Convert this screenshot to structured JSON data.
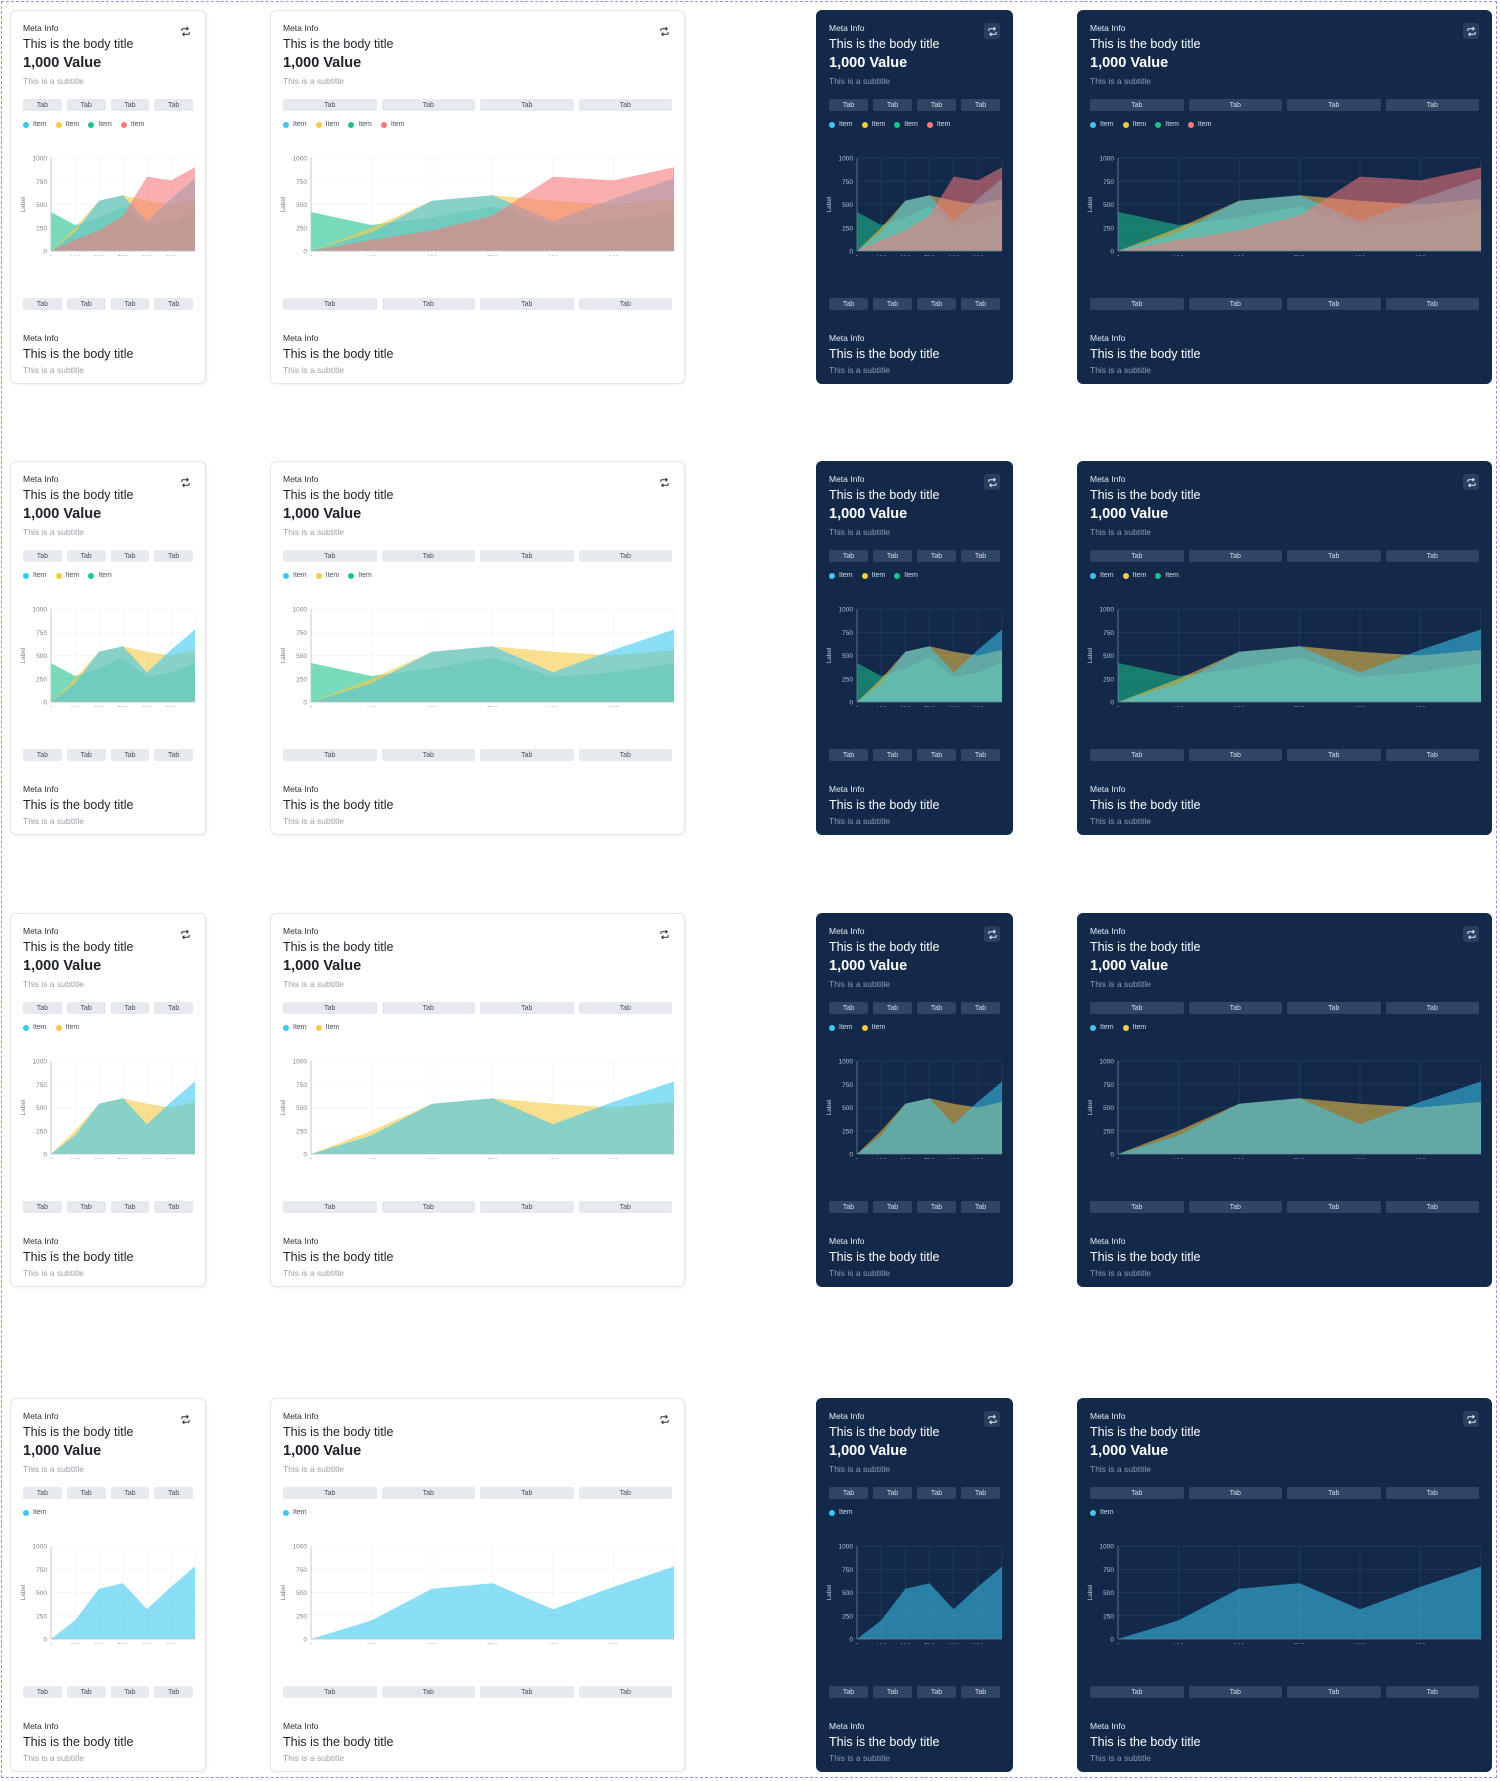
{
  "card": {
    "meta": "Meta Info",
    "title": "This is the body title",
    "value": "1,000 Value",
    "subtitle": "This is a subtitle",
    "tabs": [
      "Tab",
      "Tab",
      "Tab",
      "Tab"
    ],
    "footer_meta": "Meta Info",
    "footer_title": "This is the body title",
    "footer_subtitle": "This is a subtitle",
    "refresh_icon": "refresh-icon"
  },
  "colors": {
    "light_bg": "#ffffff",
    "dark_bg": "#13294a",
    "blue": "#3cc8ef",
    "yellow": "#f7c948",
    "green": "#1ec38d",
    "red": "#f57a7a"
  },
  "rows": [
    {
      "series_count": 4
    },
    {
      "series_count": 3
    },
    {
      "series_count": 2
    },
    {
      "series_count": 1
    }
  ],
  "chart_data": {
    "type": "area",
    "x": [
      0,
      100,
      600,
      700,
      800,
      900,
      1000
    ],
    "x_ticks": [
      "0",
      "100",
      "600",
      "700",
      "800",
      "900"
    ],
    "y_ticks": [
      "1000",
      "750",
      "500",
      "250",
      "0",
      "0"
    ],
    "ylim": [
      0,
      1000
    ],
    "xlabel": "Label",
    "ylabel": "Label",
    "series": [
      {
        "name": "Item",
        "color": "#3cc8ef",
        "values": [
          0,
          200,
          540,
          600,
          320,
          560,
          780
        ]
      },
      {
        "name": "Item",
        "color": "#f7c948",
        "values": [
          0,
          250,
          540,
          600,
          540,
          500,
          560
        ]
      },
      {
        "name": "Item",
        "color": "#1ec38d",
        "values": [
          420,
          280,
          360,
          480,
          270,
          320,
          420
        ]
      },
      {
        "name": "Item",
        "color": "#f57a7a",
        "values": [
          0,
          120,
          220,
          380,
          800,
          760,
          900
        ]
      }
    ]
  }
}
